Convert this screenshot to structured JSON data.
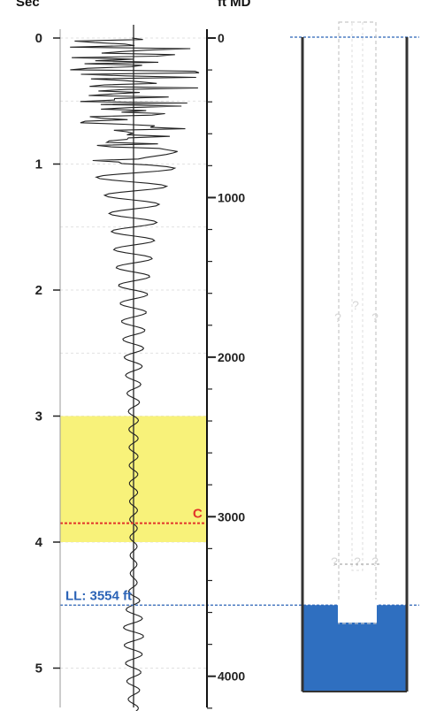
{
  "left_axis": {
    "title": "Sec",
    "ticks": [
      "0",
      "1",
      "2",
      "3",
      "4",
      "5"
    ]
  },
  "right_axis": {
    "title": "ft MD",
    "ticks": [
      "0",
      "1000",
      "2000",
      "3000",
      "4000"
    ]
  },
  "colors": {
    "highlight": "#f8f27a",
    "collar_marker": "#e2342a",
    "liquid_level": "#2b63b6",
    "fluid_fill": "#2f6fc0",
    "casing_wall": "#333333",
    "trace": "#222222"
  },
  "chart_data": {
    "type": "line",
    "title": "",
    "xlabel": "",
    "ylabel": "Sec",
    "y_secondary_label": "ft MD",
    "ylim": [
      0,
      5.4
    ],
    "y_secondary_ticks": [
      0,
      1000,
      2000,
      3000,
      4000
    ],
    "grid": true,
    "highlight_band": {
      "from_sec": 3.0,
      "to_sec": 4.0
    },
    "collar_marker": {
      "label": "C",
      "sec": 3.85
    },
    "liquid_level": {
      "label": "LL: 3554 ft",
      "sec": 4.5,
      "depth_ft": 3554
    },
    "series": [
      {
        "name": "",
        "trace_points_sec": [
          0,
          0.7,
          1.3,
          2.0,
          3.0,
          4.3,
          4.7,
          5.4
        ],
        "amplitude_relative": [
          1.0,
          0.75,
          0.32,
          0.18,
          0.06,
          0.04,
          0.13,
          0.05
        ]
      }
    ]
  },
  "wellbore": {
    "question_marks": [
      "?",
      "?",
      "?",
      "?",
      "?",
      "?"
    ]
  }
}
